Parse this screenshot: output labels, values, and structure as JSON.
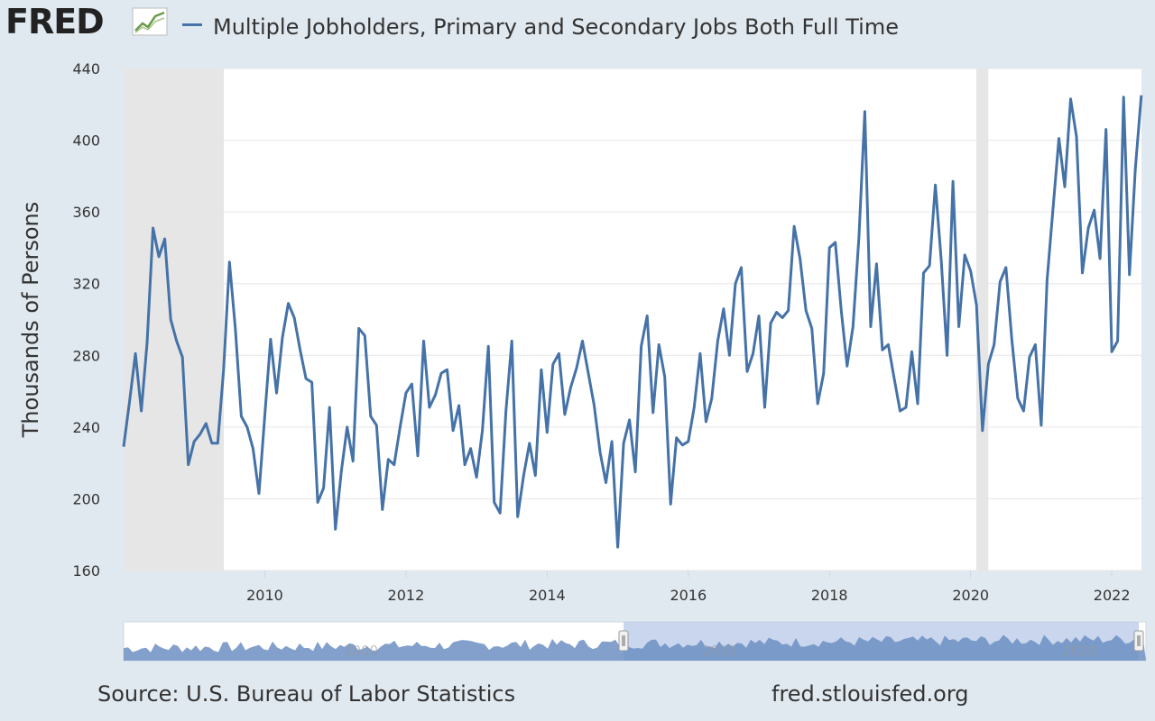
{
  "header": {
    "logo_text": "FRED",
    "series_label": "Multiple Jobholders, Primary and Secondary Jobs Both Full Time"
  },
  "footer": {
    "source": "Source: U.S. Bureau of Labor Statistics",
    "site": "fred.stlouisfed.org"
  },
  "colors": {
    "background": "#e1e9f0",
    "plot_bg": "#ffffff",
    "recession": "#e6e6e6",
    "series": "#4572a7",
    "grid": "#e6e6e6",
    "navigator_fill": "#6c8fc2",
    "navigator_selected": "#b3c5e6"
  },
  "chart_data": {
    "type": "line",
    "title": "Multiple Jobholders, Primary and Secondary Jobs Both Full Time",
    "ylabel": "Thousands of Persons",
    "xlabel": "",
    "ylim": [
      160,
      440
    ],
    "xlim": [
      2008.0,
      2022.42
    ],
    "y_ticks": [
      160,
      200,
      240,
      280,
      320,
      360,
      400,
      440
    ],
    "x_ticks": [
      2010,
      2012,
      2014,
      2016,
      2018,
      2020,
      2022
    ],
    "grid": true,
    "recessions": [
      [
        2008.0,
        2009.42
      ],
      [
        2020.08,
        2020.25
      ]
    ],
    "navigator_labels": [
      "2000",
      "2010",
      "2020"
    ],
    "series": [
      {
        "name": "Multiple Jobholders, Primary and Secondary Jobs Both Full Time",
        "x": [
          2008.0,
          2008.083,
          2008.167,
          2008.25,
          2008.333,
          2008.417,
          2008.5,
          2008.583,
          2008.667,
          2008.75,
          2008.833,
          2008.917,
          2009.0,
          2009.083,
          2009.167,
          2009.25,
          2009.333,
          2009.417,
          2009.5,
          2009.583,
          2009.667,
          2009.75,
          2009.833,
          2009.917,
          2010.0,
          2010.083,
          2010.167,
          2010.25,
          2010.333,
          2010.417,
          2010.5,
          2010.583,
          2010.667,
          2010.75,
          2010.833,
          2010.917,
          2011.0,
          2011.083,
          2011.167,
          2011.25,
          2011.333,
          2011.417,
          2011.5,
          2011.583,
          2011.667,
          2011.75,
          2011.833,
          2011.917,
          2012.0,
          2012.083,
          2012.167,
          2012.25,
          2012.333,
          2012.417,
          2012.5,
          2012.583,
          2012.667,
          2012.75,
          2012.833,
          2012.917,
          2013.0,
          2013.083,
          2013.167,
          2013.25,
          2013.333,
          2013.417,
          2013.5,
          2013.583,
          2013.667,
          2013.75,
          2013.833,
          2013.917,
          2014.0,
          2014.083,
          2014.167,
          2014.25,
          2014.333,
          2014.417,
          2014.5,
          2014.583,
          2014.667,
          2014.75,
          2014.833,
          2014.917,
          2015.0,
          2015.083,
          2015.167,
          2015.25,
          2015.333,
          2015.417,
          2015.5,
          2015.583,
          2015.667,
          2015.75,
          2015.833,
          2015.917,
          2016.0,
          2016.083,
          2016.167,
          2016.25,
          2016.333,
          2016.417,
          2016.5,
          2016.583,
          2016.667,
          2016.75,
          2016.833,
          2016.917,
          2017.0,
          2017.083,
          2017.167,
          2017.25,
          2017.333,
          2017.417,
          2017.5,
          2017.583,
          2017.667,
          2017.75,
          2017.833,
          2017.917,
          2018.0,
          2018.083,
          2018.167,
          2018.25,
          2018.333,
          2018.417,
          2018.5,
          2018.583,
          2018.667,
          2018.75,
          2018.833,
          2018.917,
          2019.0,
          2019.083,
          2019.167,
          2019.25,
          2019.333,
          2019.417,
          2019.5,
          2019.583,
          2019.667,
          2019.75,
          2019.833,
          2019.917,
          2020.0,
          2020.083,
          2020.167,
          2020.25,
          2020.333,
          2020.417,
          2020.5,
          2020.583,
          2020.667,
          2020.75,
          2020.833,
          2020.917,
          2021.0,
          2021.083,
          2021.167,
          2021.25,
          2021.333,
          2021.417,
          2021.5,
          2021.583,
          2021.667,
          2021.75,
          2021.833,
          2021.917,
          2022.0,
          2022.083,
          2022.167,
          2022.25,
          2022.333,
          2022.417
        ],
        "y": [
          229,
          254,
          281,
          249,
          287,
          351,
          335,
          345,
          300,
          288,
          279,
          219,
          232,
          236,
          242,
          231,
          231,
          272,
          332,
          295,
          246,
          240,
          228,
          203,
          246,
          289,
          259,
          290,
          309,
          301,
          283,
          267,
          265,
          198,
          206,
          251,
          183,
          215,
          240,
          221,
          295,
          291,
          246,
          241,
          194,
          222,
          219,
          240,
          259,
          264,
          224,
          288,
          251,
          258,
          270,
          272,
          238,
          252,
          219,
          228,
          212,
          238,
          285,
          198,
          192,
          249,
          288,
          190,
          213,
          231,
          213,
          272,
          237,
          275,
          281,
          247,
          262,
          273,
          288,
          270,
          252,
          226,
          209,
          232,
          173,
          231,
          244,
          215,
          285,
          302,
          248,
          286,
          268,
          197,
          234,
          230,
          232,
          251,
          281,
          243,
          256,
          288,
          306,
          280,
          320,
          329,
          271,
          281,
          302,
          251,
          298,
          304,
          301,
          305,
          352,
          334,
          305,
          295,
          253,
          270,
          340,
          343,
          305,
          274,
          296,
          346,
          416,
          296,
          331,
          283,
          286,
          267,
          249,
          251,
          282,
          253,
          326,
          330,
          375,
          333,
          280,
          377,
          296,
          336,
          327,
          308,
          238,
          275,
          286,
          321,
          329,
          289,
          256,
          249,
          279,
          286,
          241,
          322,
          362,
          401,
          374,
          423,
          402,
          326,
          351,
          361,
          334,
          406,
          282,
          288,
          424,
          325,
          384,
          425
        ]
      }
    ]
  }
}
